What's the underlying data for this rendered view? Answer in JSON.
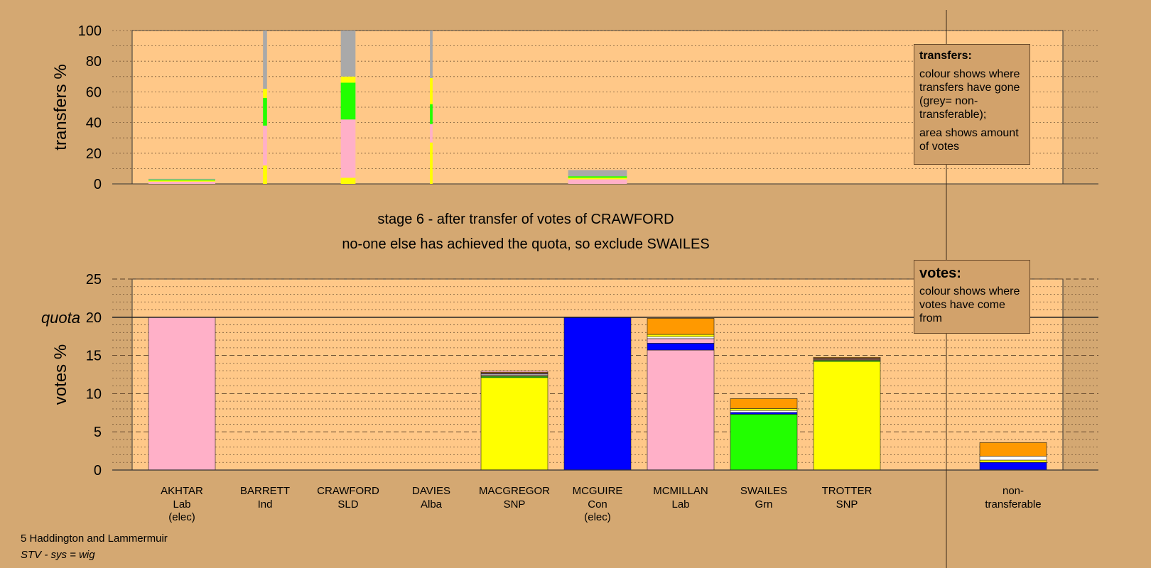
{
  "colors": {
    "background": "#d4a872",
    "plot_bg": "#ffc888",
    "Lab": "#ffb0c8",
    "Con": "#0000ff",
    "SNP": "#ffff00",
    "Grn": "#22ff00",
    "SLD": "#ff9900",
    "Ind": "#ffffff",
    "Alba": "#c07850",
    "nontransferable": "#a9a9a9"
  },
  "stage": {
    "line1": "stage 6 - after transfer of votes of CRAWFORD",
    "line2": "no-one else has achieved the quota, so exclude SWAILES"
  },
  "legend_transfers": {
    "title": "transfers:",
    "text1": "colour shows where transfers have gone (grey= non-transferable);",
    "text2": "area shows amount of votes"
  },
  "legend_votes": {
    "title": "votes:",
    "text1": "colour shows where votes have come from"
  },
  "footer": {
    "constituency": "5 Haddington and Lammermuir",
    "system": "STV - sys = wig"
  },
  "chart_data": [
    {
      "type": "bar",
      "name": "transfers",
      "ylabel": "transfers %",
      "ylim": [
        0,
        100
      ],
      "yticks": [
        0,
        20,
        40,
        60,
        80,
        100
      ],
      "grid": "dotted",
      "columns": [
        {
          "candidate": "AKHTAR",
          "width": 1.0,
          "segments": [
            {
              "party": "Lab",
              "value": 1.5
            },
            {
              "party": "SNP",
              "value": 0.7
            },
            {
              "party": "Grn",
              "value": 0.6
            },
            {
              "party": "nontransferable",
              "value": 0.5
            }
          ]
        },
        {
          "candidate": "BARRETT",
          "width": 0.06,
          "segments": [
            {
              "party": "SNP",
              "value": 12
            },
            {
              "party": "Lab",
              "value": 26
            },
            {
              "party": "Grn",
              "value": 18
            },
            {
              "party": "SNP",
              "value": 6
            },
            {
              "party": "nontransferable",
              "value": 38
            }
          ]
        },
        {
          "candidate": "CRAWFORD",
          "width": 0.22,
          "segments": [
            {
              "party": "SNP",
              "value": 4
            },
            {
              "party": "Lab",
              "value": 38
            },
            {
              "party": "Grn",
              "value": 24
            },
            {
              "party": "SNP",
              "value": 4
            },
            {
              "party": "nontransferable",
              "value": 30
            }
          ]
        },
        {
          "candidate": "DAVIES",
          "width": 0.04,
          "segments": [
            {
              "party": "SNP",
              "value": 27
            },
            {
              "party": "Lab",
              "value": 12
            },
            {
              "party": "Grn",
              "value": 13
            },
            {
              "party": "SNP",
              "value": 17
            },
            {
              "party": "nontransferable",
              "value": 31
            }
          ]
        },
        {
          "candidate": "MCGUIRE",
          "width": 0.88,
          "segments": [
            {
              "party": "Lab",
              "value": 3
            },
            {
              "party": "SNP",
              "value": 1
            },
            {
              "party": "Grn",
              "value": 1
            },
            {
              "party": "nontransferable",
              "value": 4
            }
          ]
        }
      ]
    },
    {
      "type": "bar",
      "name": "votes",
      "ylabel": "votes %",
      "ylim": [
        0,
        25
      ],
      "yticks": [
        0,
        5,
        10,
        15,
        20,
        25
      ],
      "quota": 20,
      "quota_label": "quota",
      "grid": "dashed",
      "categories": [
        {
          "name": "AKHTAR",
          "party": "Lab",
          "note": "(elec)"
        },
        {
          "name": "BARRETT",
          "party": "Ind",
          "note": ""
        },
        {
          "name": "CRAWFORD",
          "party": "SLD",
          "note": ""
        },
        {
          "name": "DAVIES",
          "party": "Alba",
          "note": ""
        },
        {
          "name": "MACGREGOR",
          "party": "SNP",
          "note": ""
        },
        {
          "name": "MCGUIRE",
          "party": "Con",
          "note": "(elec)"
        },
        {
          "name": "MCMILLAN",
          "party": "Lab",
          "note": ""
        },
        {
          "name": "SWAILES",
          "party": "Grn",
          "note": ""
        },
        {
          "name": "TROTTER",
          "party": "SNP",
          "note": ""
        }
      ],
      "nontransferable_label": [
        "non-",
        "transferable"
      ],
      "stacks": [
        [
          {
            "party": "Lab",
            "value": 20
          }
        ],
        [],
        [],
        [],
        [
          {
            "party": "SNP",
            "value": 12.1
          },
          {
            "party": "Grn",
            "value": 0.15
          },
          {
            "party": "Alba",
            "value": 0.15
          },
          {
            "party": "Ind",
            "value": 0.15
          },
          {
            "party": "Con",
            "value": 0.1
          },
          {
            "party": "SLD",
            "value": 0.15
          },
          {
            "party": "Lab",
            "value": 0.15
          }
        ],
        [
          {
            "party": "Con",
            "value": 20
          }
        ],
        [
          {
            "party": "Lab",
            "value": 15.7
          },
          {
            "party": "Con",
            "value": 0.9
          },
          {
            "party": "Lab",
            "value": 0.6
          },
          {
            "party": "Ind",
            "value": 0.25
          },
          {
            "party": "SNP",
            "value": 0.3
          },
          {
            "party": "SLD",
            "value": 2.1
          }
        ],
        [
          {
            "party": "Grn",
            "value": 7.3
          },
          {
            "party": "Con",
            "value": 0.25
          },
          {
            "party": "Ind",
            "value": 0.25
          },
          {
            "party": "SNP",
            "value": 0.25
          },
          {
            "party": "SLD",
            "value": 1.3
          }
        ],
        [
          {
            "party": "SNP",
            "value": 14.2
          },
          {
            "party": "Grn",
            "value": 0.15
          },
          {
            "party": "Alba",
            "value": 0.15
          },
          {
            "party": "Con",
            "value": 0.1
          },
          {
            "party": "SLD",
            "value": 0.15
          }
        ],
        [
          {
            "party": "Con",
            "value": 1.0
          },
          {
            "party": "SNP",
            "value": 0.3
          },
          {
            "party": "Ind",
            "value": 0.5
          },
          {
            "party": "SLD",
            "value": 1.8
          }
        ]
      ]
    }
  ]
}
